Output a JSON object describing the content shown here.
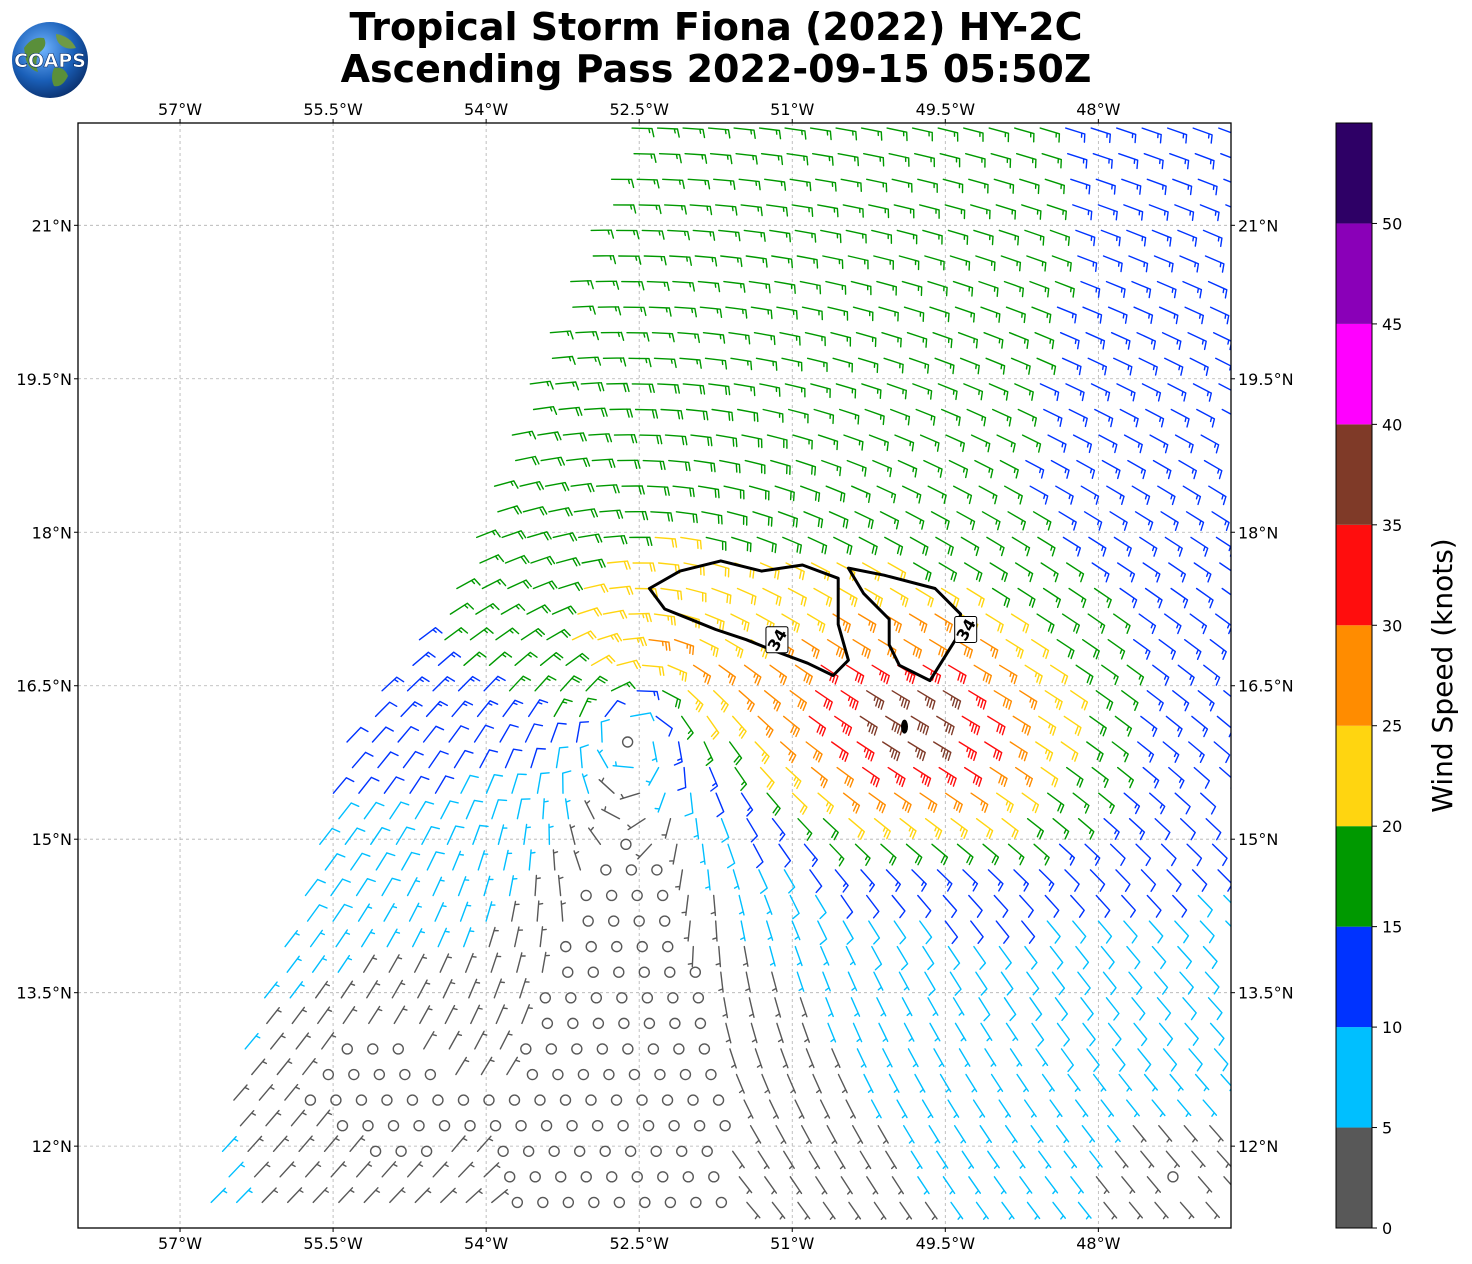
{
  "header": {
    "title_line1": "Tropical Storm Fiona (2022) HY-2C",
    "title_line2": "Ascending Pass 2022-09-15 05:50Z",
    "logo_text": "COAPS"
  },
  "chart_data": {
    "type": "wind_barb_map",
    "title": "Tropical Storm Fiona (2022) HY-2C Ascending Pass 2022-09-15 05:50Z",
    "lon_range": [
      -58.0,
      -46.7
    ],
    "lat_range": [
      11.2,
      22.0
    ],
    "x_ticks": [
      {
        "value": -57.0,
        "label": "57°W"
      },
      {
        "value": -55.5,
        "label": "55.5°W"
      },
      {
        "value": -54.0,
        "label": "54°W"
      },
      {
        "value": -52.5,
        "label": "52.5°W"
      },
      {
        "value": -51.0,
        "label": "51°W"
      },
      {
        "value": -49.5,
        "label": "49.5°W"
      },
      {
        "value": -48.0,
        "label": "48°W"
      }
    ],
    "y_ticks": [
      {
        "value": 21.0,
        "label": "21°N"
      },
      {
        "value": 19.5,
        "label": "19.5°N"
      },
      {
        "value": 18.0,
        "label": "18°N"
      },
      {
        "value": 16.5,
        "label": "16.5°N"
      },
      {
        "value": 15.0,
        "label": "15°N"
      },
      {
        "value": 13.5,
        "label": "13.5°N"
      },
      {
        "value": 12.0,
        "label": "12°N"
      }
    ],
    "grid": true,
    "storm_center": {
      "lon": -52.5,
      "lat": 16.3
    },
    "max_wind_center": {
      "lon": -49.9,
      "lat": 16.1
    },
    "contour_34kt": {
      "label": "34",
      "polygons": [
        [
          [
            -52.4,
            17.45
          ],
          [
            -52.1,
            17.62
          ],
          [
            -51.7,
            17.72
          ],
          [
            -51.3,
            17.62
          ],
          [
            -50.9,
            17.68
          ],
          [
            -50.55,
            17.55
          ],
          [
            -50.55,
            17.1
          ],
          [
            -50.45,
            16.75
          ],
          [
            -50.6,
            16.6
          ],
          [
            -50.85,
            16.72
          ],
          [
            -51.2,
            16.85
          ],
          [
            -51.45,
            16.95
          ],
          [
            -51.75,
            17.05
          ],
          [
            -52.0,
            17.15
          ],
          [
            -52.25,
            17.25
          ],
          [
            -52.4,
            17.45
          ]
        ],
        [
          [
            -50.45,
            17.65
          ],
          [
            -50.1,
            17.58
          ],
          [
            -49.6,
            17.45
          ],
          [
            -49.35,
            17.2
          ],
          [
            -49.4,
            16.95
          ],
          [
            -49.65,
            16.55
          ],
          [
            -49.95,
            16.7
          ],
          [
            -50.05,
            16.9
          ],
          [
            -50.05,
            17.15
          ],
          [
            -50.3,
            17.4
          ],
          [
            -50.45,
            17.65
          ]
        ]
      ],
      "label_positions": [
        [
          -51.15,
          16.95
        ],
        [
          -49.3,
          17.05
        ]
      ]
    },
    "colorbar": {
      "label": "Wind Speed (knots)",
      "min": 0,
      "max": 55,
      "tick_values": [
        0,
        5,
        10,
        15,
        20,
        25,
        30,
        35,
        40,
        45,
        50
      ],
      "bins": [
        {
          "from": 0,
          "to": 5,
          "color": "#585858"
        },
        {
          "from": 5,
          "to": 10,
          "color": "#00bfff"
        },
        {
          "from": 10,
          "to": 15,
          "color": "#0033ff"
        },
        {
          "from": 15,
          "to": 20,
          "color": "#009900"
        },
        {
          "from": 20,
          "to": 25,
          "color": "#ffd510"
        },
        {
          "from": 25,
          "to": 30,
          "color": "#ff8c00"
        },
        {
          "from": 30,
          "to": 35,
          "color": "#ff0d0d"
        },
        {
          "from": 35,
          "to": 40,
          "color": "#7f3a28"
        },
        {
          "from": 40,
          "to": 45,
          "color": "#ff00ff"
        },
        {
          "from": 45,
          "to": 50,
          "color": "#8a00b8"
        },
        {
          "from": 50,
          "to": 55,
          "color": "#2e0066"
        }
      ]
    },
    "wind_field": {
      "model": "rankine_vortex_with_background_flow",
      "swath_west_edge_lon_at_lat": [
        [
          22.0,
          -52.6
        ],
        [
          19.5,
          -53.6
        ],
        [
          17.5,
          -54.3
        ],
        [
          16.0,
          -55.4
        ],
        [
          14.5,
          -55.8
        ],
        [
          13.0,
          -56.4
        ],
        [
          11.2,
          -56.8
        ]
      ],
      "low_wind_zones": [
        {
          "lon": -55.3,
          "lat": 12.6,
          "radius_deg": 1.6
        },
        {
          "lon": -47.2,
          "lat": 11.7,
          "radius_deg": 1.4
        }
      ]
    }
  }
}
